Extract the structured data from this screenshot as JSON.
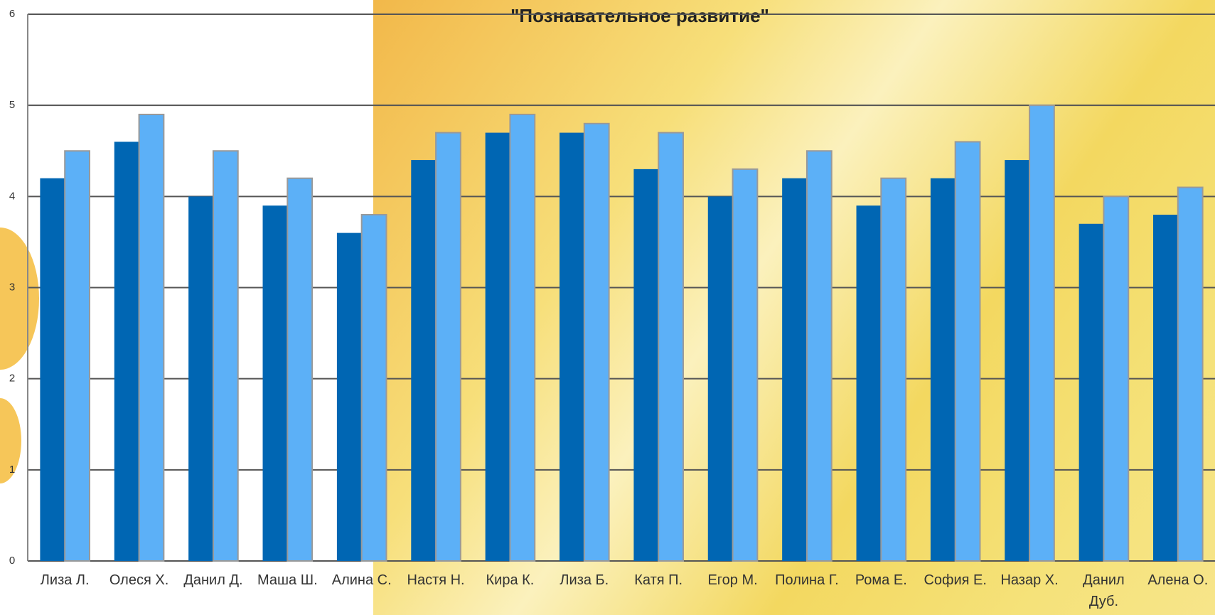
{
  "chart_data": {
    "type": "bar",
    "title": "\"Познавательное развитие\"",
    "categories": [
      "Лиза Л.",
      "Олеся Х.",
      "Данил Д.",
      "Маша Ш.",
      "Алина С.",
      "Настя Н.",
      "Кира К.",
      "Лиза Б.",
      "Катя П.",
      "Егор М.",
      "Полина Г.",
      "Рома Е.",
      "София Е.",
      "Назар Х.",
      "Данил Дуб.",
      "Алена О."
    ],
    "series": [
      {
        "color": "#0066b3",
        "values": [
          4.2,
          4.6,
          4.0,
          3.9,
          3.6,
          4.4,
          4.7,
          4.7,
          4.3,
          4.0,
          4.2,
          3.9,
          4.2,
          4.4,
          3.7,
          3.8
        ]
      },
      {
        "color": "#5cb0f7",
        "values": [
          4.5,
          4.9,
          4.5,
          4.2,
          3.8,
          4.7,
          4.9,
          4.8,
          4.7,
          4.3,
          4.5,
          4.2,
          4.6,
          5.0,
          4.0,
          4.1
        ]
      }
    ],
    "ylim": [
      0,
      6
    ],
    "yticks": [
      0,
      1,
      2,
      3,
      4,
      5,
      6
    ],
    "grid": true
  }
}
